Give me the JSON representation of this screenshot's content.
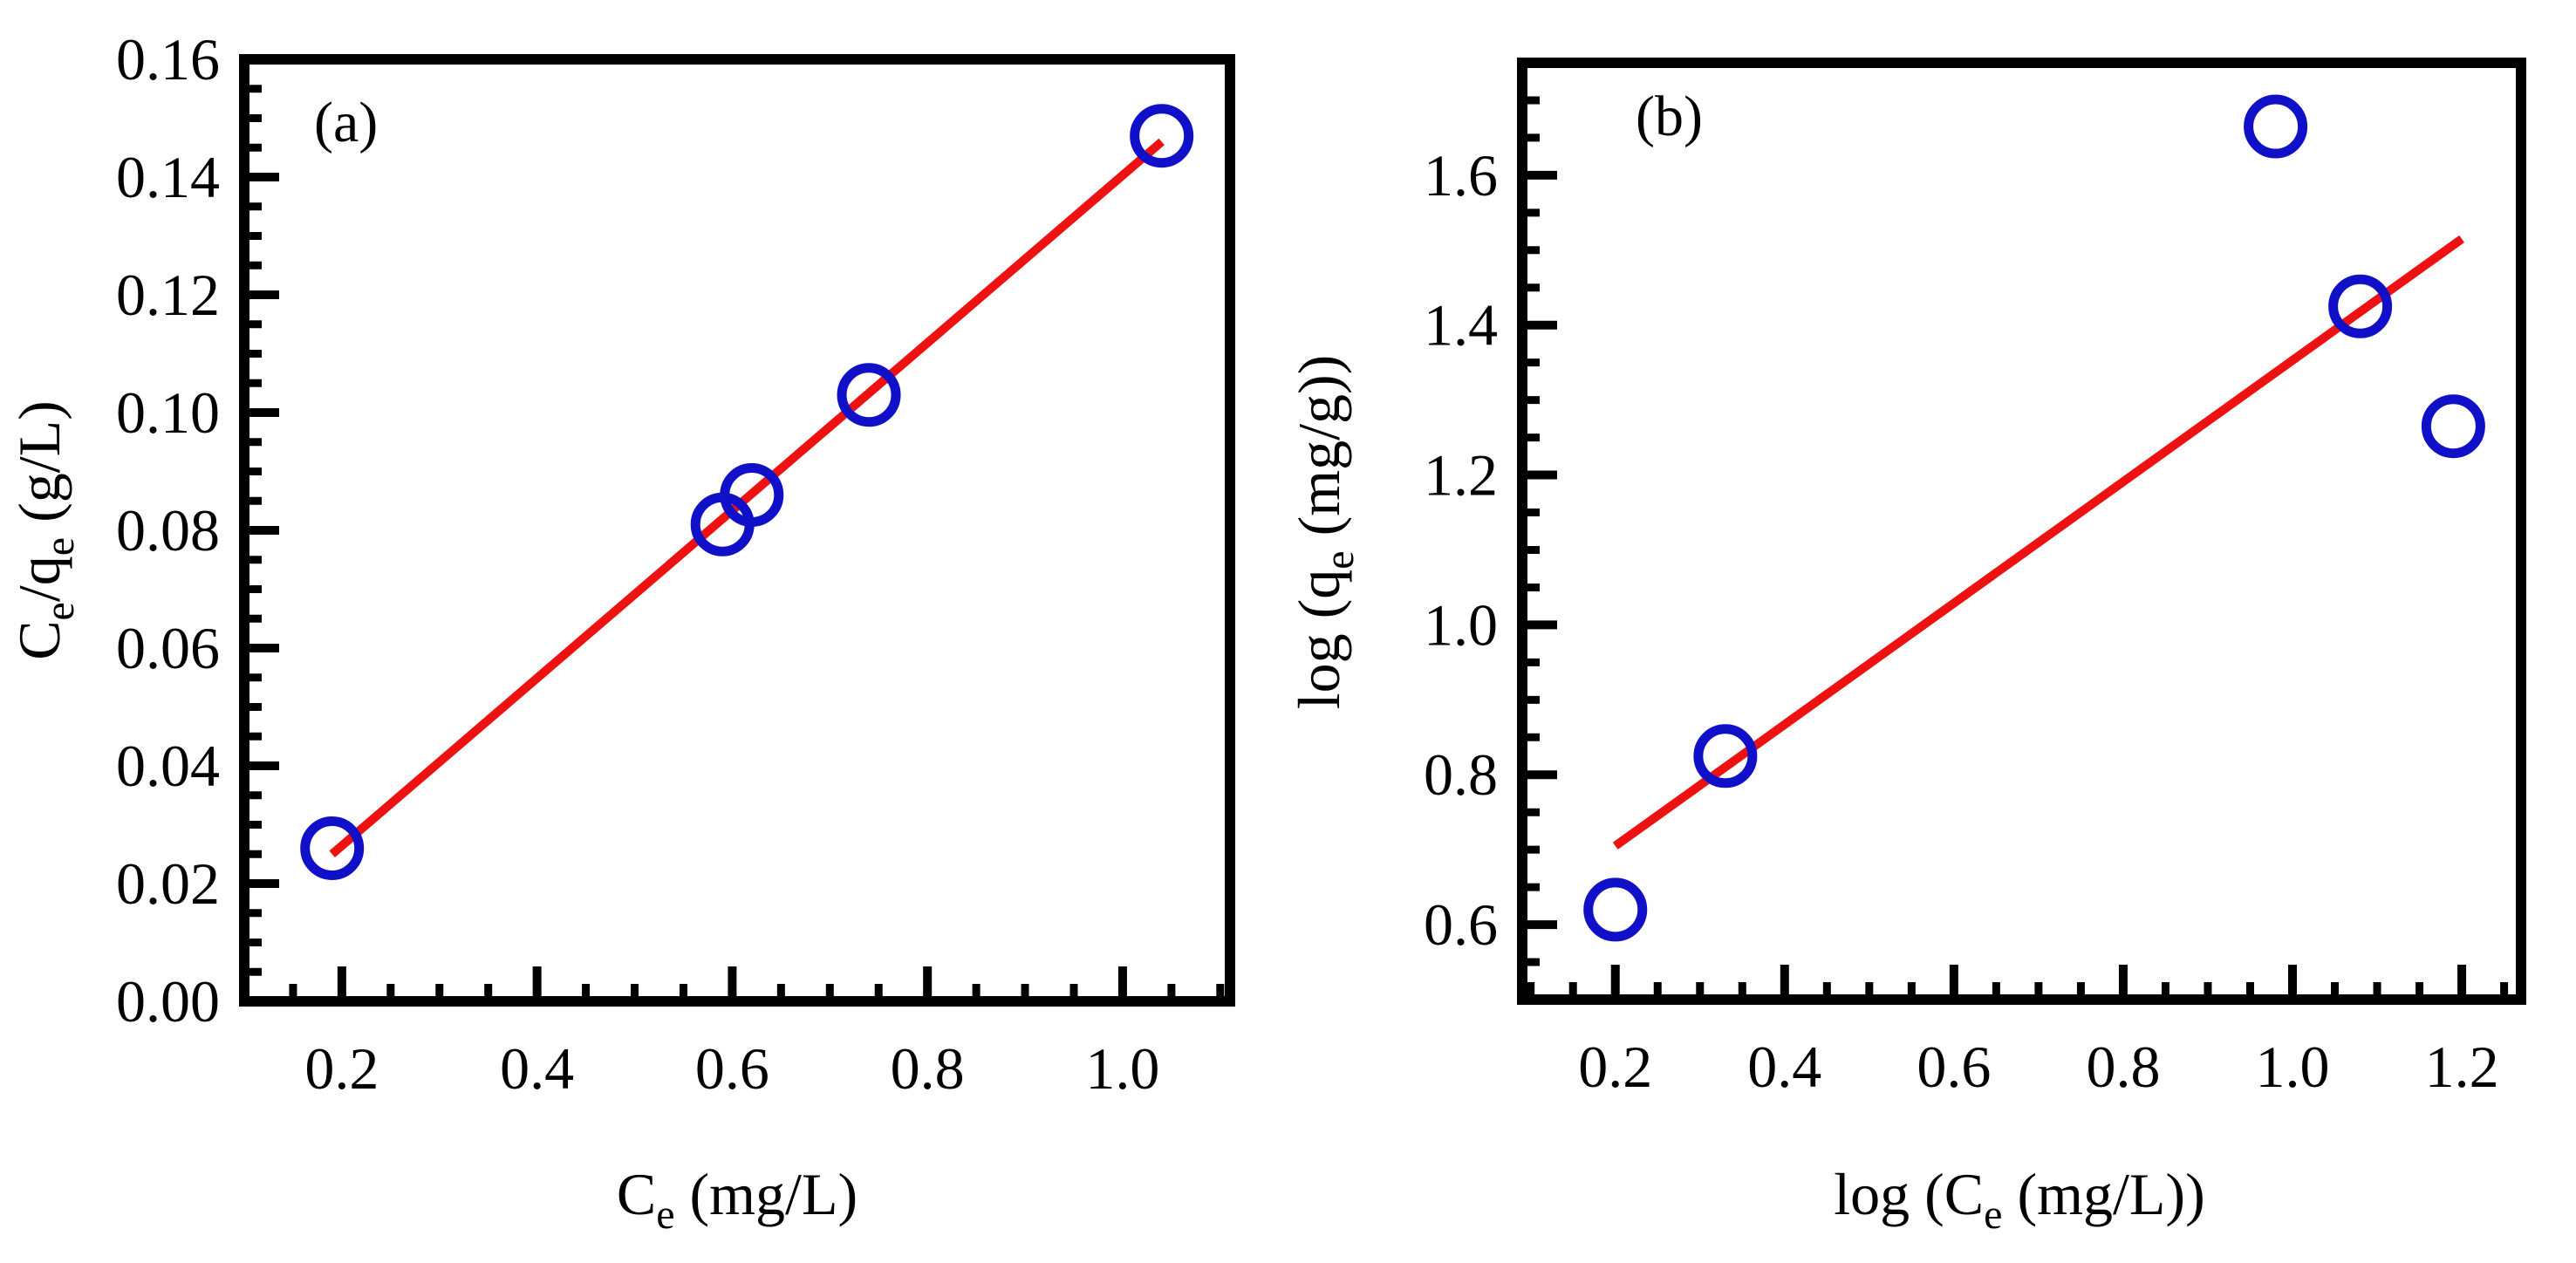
{
  "colors": {
    "points": "#1010c8",
    "fit_line": "#ee1111",
    "axes": "#000000"
  },
  "chart_data": [
    {
      "type": "scatter",
      "panel": "(a)",
      "xlabel": {
        "main": "C",
        "sub": "e",
        "rest": " (mg/L)"
      },
      "ylabel": {
        "main": "C",
        "sub": "e",
        "mid": "/q",
        "sub2": "e",
        "rest": "  (g/L)"
      },
      "xlim": [
        0.1,
        1.11
      ],
      "ylim": [
        0.0,
        0.16
      ],
      "xticks": [
        "0.2",
        "0.4",
        "0.6",
        "0.8",
        "1.0"
      ],
      "xtick_values": [
        0.2,
        0.4,
        0.6,
        0.8,
        1.0
      ],
      "yticks": [
        "0.00",
        "0.02",
        "0.04",
        "0.06",
        "0.08",
        "0.10",
        "0.12",
        "0.14",
        "0.16"
      ],
      "ytick_values": [
        0.0,
        0.02,
        0.04,
        0.06,
        0.08,
        0.1,
        0.12,
        0.14,
        0.16
      ],
      "x_minor_step": 0.05,
      "y_minor_step": 0.005,
      "points": [
        {
          "x": 0.19,
          "y": 0.026
        },
        {
          "x": 0.59,
          "y": 0.081
        },
        {
          "x": 0.62,
          "y": 0.086
        },
        {
          "x": 0.74,
          "y": 0.103
        },
        {
          "x": 1.04,
          "y": 0.147
        }
      ],
      "fit_line": {
        "x": [
          0.19,
          1.04
        ],
        "y": [
          0.025,
          0.146
        ]
      }
    },
    {
      "type": "scatter",
      "panel": "(b)",
      "xlabel": {
        "main": "log (C",
        "sub": "e",
        "rest": " (mg/L))"
      },
      "ylabel": {
        "main": "log (q",
        "sub": "e",
        "rest": "  (mg/g))"
      },
      "xlim": [
        0.09,
        1.27
      ],
      "ylim": [
        0.5,
        1.75
      ],
      "xticks": [
        "0.2",
        "0.4",
        "0.6",
        "0.8",
        "1.0",
        "1.2"
      ],
      "xtick_values": [
        0.2,
        0.4,
        0.6,
        0.8,
        1.0,
        1.2
      ],
      "yticks": [
        "0.6",
        "0.8",
        "1.0",
        "1.2",
        "1.4",
        "1.6"
      ],
      "ytick_values": [
        0.6,
        0.8,
        1.0,
        1.2,
        1.4,
        1.6
      ],
      "x_minor_step": 0.05,
      "y_minor_step": 0.05,
      "points": [
        {
          "x": 0.2,
          "y": 0.62
        },
        {
          "x": 0.33,
          "y": 0.825
        },
        {
          "x": 0.98,
          "y": 1.665
        },
        {
          "x": 1.08,
          "y": 1.425
        },
        {
          "x": 1.19,
          "y": 1.265
        }
      ],
      "fit_line": {
        "x": [
          0.2,
          1.2
        ],
        "y": [
          0.705,
          1.515
        ]
      }
    }
  ]
}
